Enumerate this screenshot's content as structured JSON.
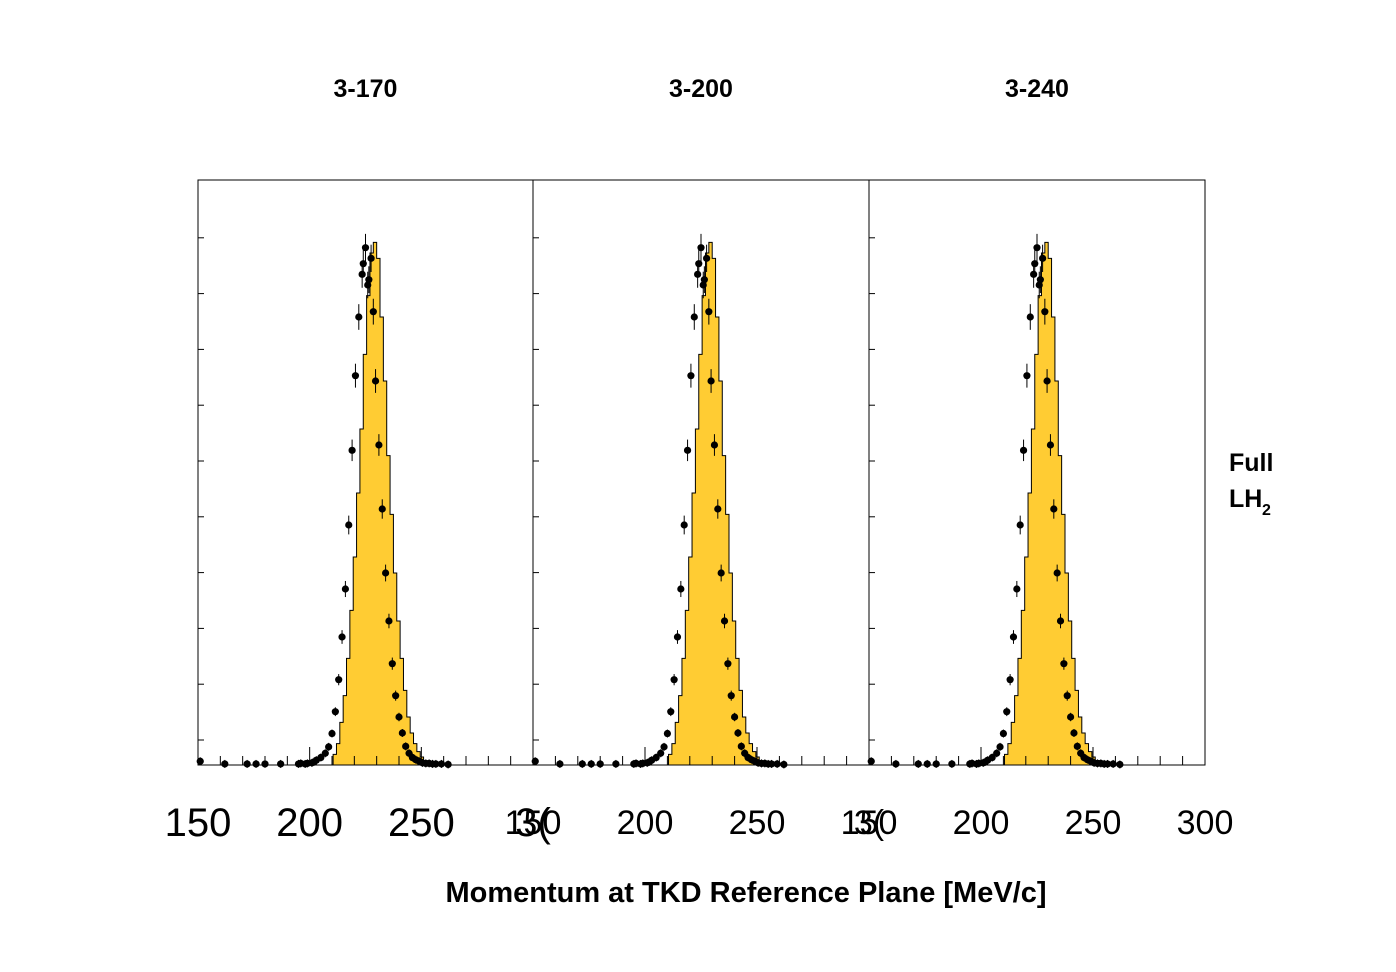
{
  "figure": {
    "xlabel": "Momentum at TKD Reference Plane [MeV/c]",
    "side_label": {
      "line1": "Full",
      "line2_main": "LH",
      "line2_sub": "2"
    },
    "colors": {
      "fill": "#FFCC33",
      "outline": "#000000",
      "marker": "#000000",
      "frame": "#000000"
    }
  },
  "chart_data": [
    {
      "type": "histogram",
      "title": "3-170",
      "xlim": [
        150,
        300
      ],
      "ylim": [
        0,
        1.05
      ],
      "x_ticks": [
        "150",
        "200",
        "250",
        "300"
      ],
      "x_tick_labels_shown": [
        "150",
        "200",
        "250",
        "3("
      ],
      "y_ticks_shown": false,
      "mc_histogram": {
        "bin_width": 1.5,
        "x_start": 210.5,
        "values": [
          0.02,
          0.04,
          0.08,
          0.13,
          0.2,
          0.29,
          0.39,
          0.51,
          0.63,
          0.77,
          0.88,
          0.96,
          0.98,
          0.95,
          0.84,
          0.72,
          0.58,
          0.47,
          0.36,
          0.27,
          0.2,
          0.14,
          0.09,
          0.06,
          0.04,
          0.025,
          0.015,
          0.008
        ]
      },
      "data_points": {
        "x": [
          151,
          162,
          172,
          176,
          180,
          187,
          195,
          196,
          198,
          199,
          201,
          202,
          203,
          205,
          207,
          208.5,
          210,
          211.5,
          213,
          214.5,
          216,
          217.5,
          219,
          220.5,
          222,
          223.5,
          224,
          225,
          226,
          226.5,
          227.5,
          228.5,
          229.5,
          231,
          232.5,
          234,
          235.5,
          237,
          238.5,
          240,
          241.5,
          243,
          244.5,
          246,
          247.5,
          249,
          250.5,
          252,
          253.5,
          255,
          256.5,
          259,
          262
        ],
        "y": [
          0.007,
          0.002,
          0.002,
          0.002,
          0.002,
          0.002,
          0.002,
          0.003,
          0.002,
          0.003,
          0.004,
          0.006,
          0.009,
          0.014,
          0.022,
          0.034,
          0.059,
          0.1,
          0.16,
          0.24,
          0.33,
          0.45,
          0.59,
          0.73,
          0.84,
          0.92,
          0.94,
          0.97,
          0.9,
          0.91,
          0.95,
          0.85,
          0.72,
          0.6,
          0.48,
          0.36,
          0.27,
          0.19,
          0.13,
          0.09,
          0.06,
          0.035,
          0.022,
          0.014,
          0.01,
          0.007,
          0.004,
          0.003,
          0.003,
          0.002,
          0.002,
          0.002,
          0.001
        ]
      }
    },
    {
      "type": "histogram",
      "title": "3-200",
      "xlim": [
        150,
        300
      ],
      "ylim": [
        0,
        1.05
      ],
      "x_ticks": [
        "150",
        "200",
        "250",
        "300"
      ],
      "x_tick_labels_shown": [
        "150",
        "200",
        "250",
        "3("
      ],
      "y_ticks_shown": false,
      "mc_histogram": {
        "bin_width": 1.5,
        "x_start": 210.5,
        "values": [
          0.02,
          0.04,
          0.08,
          0.13,
          0.2,
          0.29,
          0.39,
          0.51,
          0.63,
          0.77,
          0.88,
          0.96,
          0.98,
          0.95,
          0.84,
          0.72,
          0.58,
          0.47,
          0.36,
          0.27,
          0.2,
          0.14,
          0.09,
          0.06,
          0.04,
          0.025,
          0.015,
          0.008
        ]
      },
      "data_points": {
        "x": [
          151,
          162,
          172,
          176,
          180,
          187,
          195,
          196,
          198,
          199,
          201,
          202,
          203,
          205,
          207,
          208.5,
          210,
          211.5,
          213,
          214.5,
          216,
          217.5,
          219,
          220.5,
          222,
          223.5,
          224,
          225,
          226,
          226.5,
          227.5,
          228.5,
          229.5,
          231,
          232.5,
          234,
          235.5,
          237,
          238.5,
          240,
          241.5,
          243,
          244.5,
          246,
          247.5,
          249,
          250.5,
          252,
          253.5,
          255,
          256.5,
          259,
          262
        ],
        "y": [
          0.007,
          0.002,
          0.002,
          0.002,
          0.002,
          0.002,
          0.002,
          0.003,
          0.002,
          0.003,
          0.004,
          0.006,
          0.009,
          0.014,
          0.022,
          0.034,
          0.059,
          0.1,
          0.16,
          0.24,
          0.33,
          0.45,
          0.59,
          0.73,
          0.84,
          0.92,
          0.94,
          0.97,
          0.9,
          0.91,
          0.95,
          0.85,
          0.72,
          0.6,
          0.48,
          0.36,
          0.27,
          0.19,
          0.13,
          0.09,
          0.06,
          0.035,
          0.022,
          0.014,
          0.01,
          0.007,
          0.004,
          0.003,
          0.003,
          0.002,
          0.002,
          0.002,
          0.001
        ]
      }
    },
    {
      "type": "histogram",
      "title": "3-240",
      "xlim": [
        150,
        300
      ],
      "ylim": [
        0,
        1.05
      ],
      "x_ticks": [
        "150",
        "200",
        "250",
        "300"
      ],
      "x_tick_labels_shown": [
        "150",
        "200",
        "250",
        "300"
      ],
      "y_ticks_shown": false,
      "mc_histogram": {
        "bin_width": 1.5,
        "x_start": 210.5,
        "values": [
          0.02,
          0.04,
          0.08,
          0.13,
          0.2,
          0.29,
          0.39,
          0.51,
          0.63,
          0.77,
          0.88,
          0.96,
          0.98,
          0.95,
          0.84,
          0.72,
          0.58,
          0.47,
          0.36,
          0.27,
          0.2,
          0.14,
          0.09,
          0.06,
          0.04,
          0.025,
          0.015,
          0.008
        ]
      },
      "data_points": {
        "x": [
          151,
          162,
          172,
          176,
          180,
          187,
          195,
          196,
          198,
          199,
          201,
          202,
          203,
          205,
          207,
          208.5,
          210,
          211.5,
          213,
          214.5,
          216,
          217.5,
          219,
          220.5,
          222,
          223.5,
          224,
          225,
          226,
          226.5,
          227.5,
          228.5,
          229.5,
          231,
          232.5,
          234,
          235.5,
          237,
          238.5,
          240,
          241.5,
          243,
          244.5,
          246,
          247.5,
          249,
          250.5,
          252,
          253.5,
          255,
          256.5,
          259,
          262
        ],
        "y": [
          0.007,
          0.002,
          0.002,
          0.002,
          0.002,
          0.002,
          0.002,
          0.003,
          0.002,
          0.003,
          0.004,
          0.006,
          0.009,
          0.014,
          0.022,
          0.034,
          0.059,
          0.1,
          0.16,
          0.24,
          0.33,
          0.45,
          0.59,
          0.73,
          0.84,
          0.92,
          0.94,
          0.97,
          0.9,
          0.91,
          0.95,
          0.85,
          0.72,
          0.6,
          0.48,
          0.36,
          0.27,
          0.19,
          0.13,
          0.09,
          0.06,
          0.035,
          0.022,
          0.014,
          0.01,
          0.007,
          0.004,
          0.003,
          0.003,
          0.002,
          0.002,
          0.002,
          0.001
        ]
      }
    }
  ]
}
